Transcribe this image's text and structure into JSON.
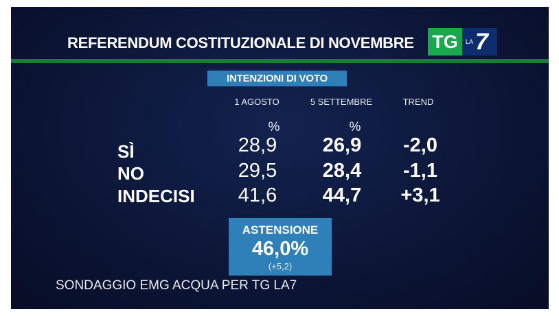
{
  "header": {
    "title": "REFERENDUM COSTITUZIONALE DI NOVEMBRE",
    "logo": {
      "tg": "TG",
      "la": "LA",
      "seven": "7",
      "tg_color": "#1aa84c",
      "la7_color": "#0e2d6e"
    }
  },
  "subtitle": "INTENZIONI DI VOTO",
  "table": {
    "columns": [
      "1 AGOSTO",
      "5 SETTEMBRE",
      "TREND"
    ],
    "units": [
      "%",
      "%"
    ],
    "rows": [
      {
        "label": "SÌ",
        "agosto": "28,9",
        "settembre": "26,9",
        "trend": "-2,0"
      },
      {
        "label": "NO",
        "agosto": "29,5",
        "settembre": "28,4",
        "trend": "-1,1"
      },
      {
        "label": "INDECISI",
        "agosto": "41,6",
        "settembre": "44,7",
        "trend": "+3,1"
      }
    ]
  },
  "astensione": {
    "label": "ASTENSIONE",
    "value": "46,0%",
    "trend": "(+5,2)"
  },
  "source": "SONDAGGIO EMG ACQUA PER TG LA7",
  "colors": {
    "background": "#0c1638",
    "accent_green": "#1d7a3c",
    "box_blue": "#2f7fb8"
  }
}
